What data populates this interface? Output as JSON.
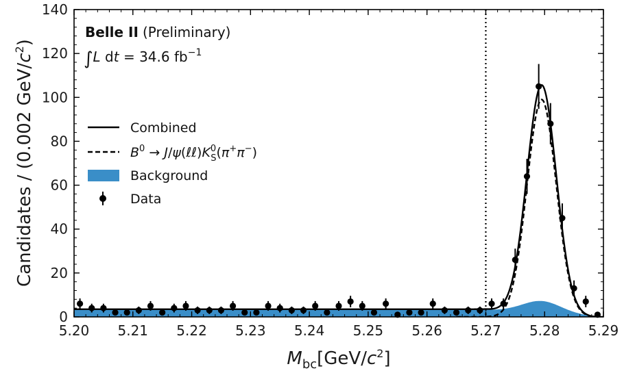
{
  "chart_data": {
    "type": "histogram-fit",
    "experiment": "Belle II",
    "status": "(Preliminary)",
    "luminosity": "∫L dt = 34.6 fb⁻¹",
    "xlabel": "M_bc[GeV/c²]",
    "ylabel": "Candidates / (0.002 GeV/c²)",
    "xlim": [
      5.2,
      5.29
    ],
    "ylim": [
      0,
      140
    ],
    "xticks": [
      "5.20",
      "5.21",
      "5.22",
      "5.23",
      "5.24",
      "5.25",
      "5.26",
      "5.27",
      "5.28",
      "5.29"
    ],
    "yticks": [
      "0",
      "20",
      "40",
      "60",
      "80",
      "100",
      "120",
      "140"
    ],
    "legend": {
      "position": "upper-left",
      "entries": [
        {
          "label": "Combined",
          "style": "solid"
        },
        {
          "label": "B⁰→J/ψ(ℓℓ)K⁰S(π⁺π⁻)",
          "style": "dashed"
        },
        {
          "label": "Background",
          "style": "fill"
        },
        {
          "label": "Data",
          "style": "errorbar"
        }
      ]
    },
    "vertical_line": 5.27,
    "colors": {
      "background_fill": "#3a8ec8",
      "lines": "#000000"
    },
    "data_points": {
      "x": [
        5.201,
        5.203,
        5.205,
        5.207,
        5.209,
        5.211,
        5.213,
        5.215,
        5.217,
        5.219,
        5.221,
        5.223,
        5.225,
        5.227,
        5.229,
        5.231,
        5.233,
        5.235,
        5.237,
        5.239,
        5.241,
        5.243,
        5.245,
        5.247,
        5.249,
        5.251,
        5.253,
        5.255,
        5.257,
        5.259,
        5.261,
        5.263,
        5.265,
        5.267,
        5.269,
        5.271,
        5.273,
        5.275,
        5.277,
        5.279,
        5.281,
        5.283,
        5.285,
        5.287,
        5.289
      ],
      "y": [
        6,
        4,
        4,
        2,
        2,
        3,
        5,
        2,
        4,
        5,
        3,
        3,
        3,
        5,
        2,
        2,
        5,
        4,
        3,
        3,
        5,
        2,
        5,
        7,
        5,
        2,
        6,
        1,
        2,
        2,
        6,
        3,
        2,
        3,
        3,
        6,
        6,
        26,
        64,
        105,
        88,
        45,
        13,
        7,
        1
      ],
      "yerr": [
        2.4,
        2,
        2,
        1.4,
        1.4,
        1.7,
        2.2,
        1.4,
        2,
        2.2,
        1.7,
        1.7,
        1.7,
        2.2,
        1.4,
        1.4,
        2.2,
        2,
        1.7,
        1.7,
        2.2,
        1.4,
        2.2,
        2.6,
        2.2,
        1.4,
        2.4,
        1,
        1.4,
        1.4,
        2.4,
        1.7,
        1.4,
        1.7,
        1.7,
        2.4,
        2.4,
        5.1,
        8,
        10.2,
        9.4,
        6.7,
        3.6,
        2.6,
        1
      ]
    },
    "fit": {
      "combined": {
        "peak_x": 5.2795,
        "peak_y": 104,
        "sigma": 0.0025,
        "baseline": 3.5,
        "tail_end": 5.288
      },
      "signal": {
        "peak_x": 5.2795,
        "peak_y": 99,
        "sigma": 0.0025
      },
      "background": {
        "level": 3.2,
        "bump_peak_x": 5.2795,
        "bump_height": 5,
        "endpoint": 5.289
      }
    }
  }
}
